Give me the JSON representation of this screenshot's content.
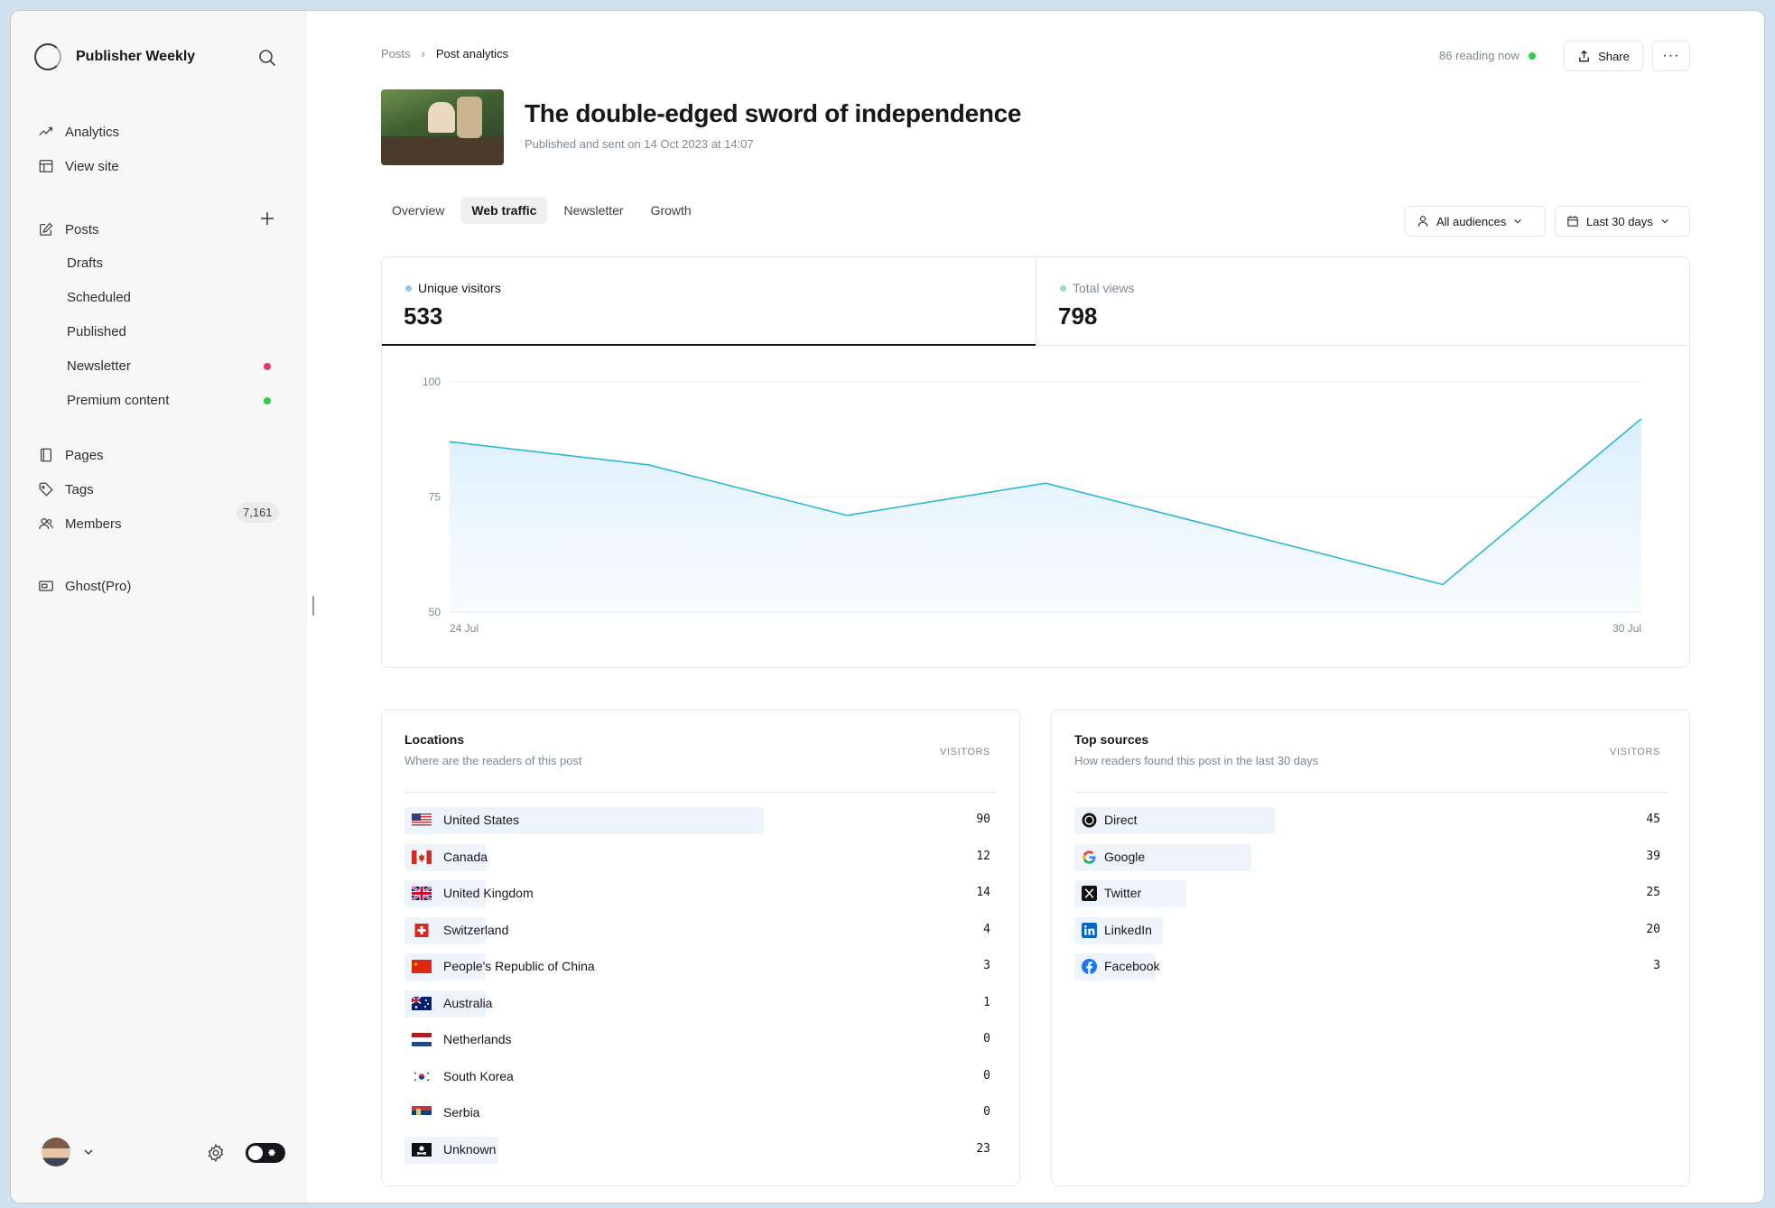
{
  "sidebar": {
    "brand": "Publisher Weekly",
    "top_items": [
      {
        "label": "Analytics",
        "icon": "trending-up-icon"
      },
      {
        "label": "View site",
        "icon": "layout-icon"
      }
    ],
    "posts": {
      "label": "Posts",
      "sub_items": [
        {
          "label": "Drafts"
        },
        {
          "label": "Scheduled"
        },
        {
          "label": "Published"
        },
        {
          "label": "Newsletter",
          "dot_color": "#e5396b"
        },
        {
          "label": "Premium content",
          "dot_color": "#30cf43"
        }
      ]
    },
    "pages": "Pages",
    "tags": "Tags",
    "members": {
      "label": "Members",
      "count": "7,161"
    },
    "ghost_pro": "Ghost(Pro)"
  },
  "breadcrumb": {
    "parent": "Posts",
    "current": "Post analytics"
  },
  "header": {
    "reading_now": "86 reading now",
    "share_label": "Share",
    "more_label": "···"
  },
  "post": {
    "title": "The double-edged sword of independence",
    "meta": "Published and sent on 14 Oct 2023 at 14:07"
  },
  "tabs": [
    {
      "label": "Overview",
      "active": false
    },
    {
      "label": "Web traffic",
      "active": true
    },
    {
      "label": "Newsletter",
      "active": false
    },
    {
      "label": "Growth",
      "active": false
    }
  ],
  "filters": {
    "audience": "All audiences",
    "range": "Last 30 days"
  },
  "kpis": [
    {
      "label": "Unique visitors",
      "value": "533",
      "color": "#8ec9f0"
    },
    {
      "label": "Total views",
      "value": "798",
      "color": "#9ed8c4"
    }
  ],
  "chart_data": {
    "type": "area",
    "x": [
      "24 Jul",
      "25 Jul",
      "26 Jul",
      "27 Jul",
      "28 Jul",
      "29 Jul",
      "30 Jul"
    ],
    "series": [
      {
        "name": "Unique visitors",
        "values": [
          87,
          82,
          71,
          78,
          67,
          56,
          92
        ]
      }
    ],
    "ylim": [
      50,
      100
    ],
    "yticks": [
      "100",
      "75",
      "50"
    ],
    "xtick_labels": [
      "24 Jul",
      "30 Jul"
    ],
    "grid": true,
    "line_color": "#2fb7d6"
  },
  "locations": {
    "title": "Locations",
    "subtitle": "Where are the readers of this post",
    "column": "VISITORS",
    "rows": [
      {
        "label": "United States",
        "value": "90",
        "flag": "us",
        "share": 0.61
      },
      {
        "label": "Canada",
        "value": "12",
        "flag": "ca",
        "share": 0.09
      },
      {
        "label": "United Kingdom",
        "value": "14",
        "flag": "gb",
        "share": 0.1
      },
      {
        "label": "Switzerland",
        "value": "4",
        "flag": "ch",
        "share": 0.04
      },
      {
        "label": "People's Republic of China",
        "value": "3",
        "flag": "cn",
        "share": 0.04
      },
      {
        "label": "Australia",
        "value": "1",
        "flag": "au",
        "share": 0.03
      },
      {
        "label": "Netherlands",
        "value": "0",
        "flag": "nl",
        "share": 0
      },
      {
        "label": "South Korea",
        "value": "0",
        "flag": "kr",
        "share": 0
      },
      {
        "label": "Serbia",
        "value": "0",
        "flag": "rs",
        "share": 0
      },
      {
        "label": "Unknown",
        "value": "23",
        "flag": "unknown",
        "share": 0.16
      }
    ]
  },
  "sources": {
    "title": "Top sources",
    "subtitle": "How readers found this post in the last 30 days",
    "column": "VISITORS",
    "rows": [
      {
        "label": "Direct",
        "value": "45",
        "icon": "direct-icon",
        "share": 0.34
      },
      {
        "label": "Google",
        "value": "39",
        "icon": "google-icon",
        "share": 0.3
      },
      {
        "label": "Twitter",
        "value": "25",
        "icon": "x-twitter-icon",
        "share": 0.19
      },
      {
        "label": "LinkedIn",
        "value": "20",
        "icon": "linkedin-icon",
        "share": 0.15
      },
      {
        "label": "Facebook",
        "value": "3",
        "icon": "facebook-icon",
        "share": 0.03
      }
    ]
  }
}
